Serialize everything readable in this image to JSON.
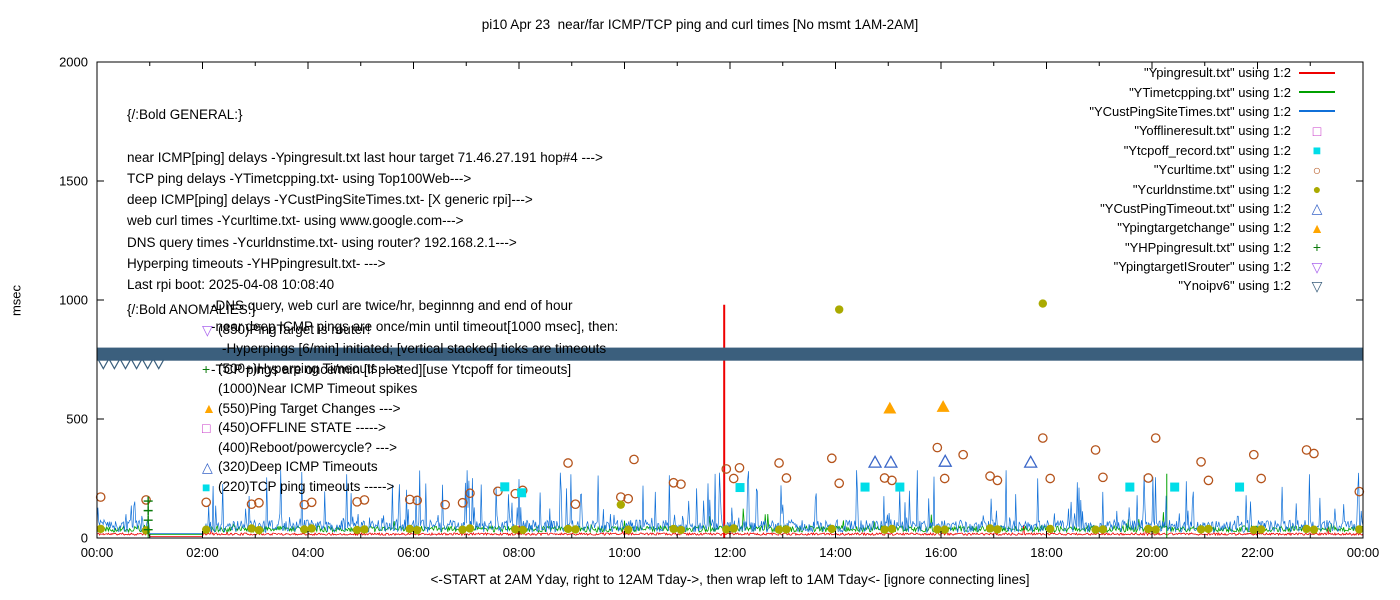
{
  "chart_data": {
    "type": "line",
    "title": "pi10 Apr 23  near/far ICMP/TCP ping and curl times [No msmt 1AM-2AM]",
    "xlabel": "<-START at 2AM Yday, right to 12AM Tday->, then wrap left to 1AM Tday<- [ignore connecting lines]",
    "ylabel": "msec",
    "xlim": [
      0,
      24
    ],
    "ylim": [
      0,
      2000
    ],
    "yticks": [
      0,
      500,
      1000,
      1500,
      2000
    ],
    "xticks": [
      {
        "h": 0,
        "label": "00:00"
      },
      {
        "h": 2,
        "label": "02:00"
      },
      {
        "h": 4,
        "label": "04:00"
      },
      {
        "h": 6,
        "label": "06:00"
      },
      {
        "h": 8,
        "label": "08:00"
      },
      {
        "h": 10,
        "label": "10:00"
      },
      {
        "h": 12,
        "label": "12:00"
      },
      {
        "h": 14,
        "label": "14:00"
      },
      {
        "h": 16,
        "label": "16:00"
      },
      {
        "h": 18,
        "label": "18:00"
      },
      {
        "h": 20,
        "label": "20:00"
      },
      {
        "h": 22,
        "label": "22:00"
      },
      {
        "h": 24,
        "label": "00:00"
      }
    ],
    "legend": [
      {
        "label": "\"Ypingresult.txt\" using 1:2",
        "swatch": "line",
        "color": "#ee0000"
      },
      {
        "label": "\"YTimetcpping.txt\" using 1:2",
        "swatch": "line",
        "color": "#00a000"
      },
      {
        "label": "\"YCustPingSiteTimes.txt\" using 1:2",
        "swatch": "line",
        "color": "#1070d8"
      },
      {
        "label": "\"Yofflineresult.txt\" using 1:2",
        "swatch": "open-square",
        "color": "#c838c8"
      },
      {
        "label": "\"Ytcpoff_record.txt\" using 1:2",
        "swatch": "filled-square",
        "color": "#00dde8"
      },
      {
        "label": "\"Ycurltime.txt\" using 1:2",
        "swatch": "open-circle",
        "color": "#b5541c"
      },
      {
        "label": "\"Ycurldnstime.txt\" using 1:2",
        "swatch": "filled-circle",
        "color": "#aaaa00"
      },
      {
        "label": "\"YCustPingTimeout.txt\" using 1:2",
        "swatch": "open-triangle-up",
        "color": "#3a66c8"
      },
      {
        "label": "\"Ypingtargetchange\" using 1:2",
        "swatch": "filled-triangle-up",
        "color": "#ffa500"
      },
      {
        "label": "\"YHPpingresult.txt\" using 1:2",
        "swatch": "plus",
        "color": "#0a7a0a"
      },
      {
        "label": "\"YpingtargetISrouter\" using 1:2",
        "swatch": "open-triangle-down",
        "color": "#aa66ee"
      },
      {
        "label": "\"Ynoipv6\" using 1:2",
        "swatch": "open-triangle-down",
        "color": "#3b5f7d"
      }
    ],
    "line_series": [
      {
        "name": "Ypingresult",
        "color": "#ee0000",
        "width": 0.8,
        "seed": 11,
        "baseline": 15,
        "noise": 5,
        "spike_prob": 0.003,
        "spike_min": 10,
        "spike_amp": 40,
        "cap": 90,
        "gap": [
          1,
          2
        ],
        "vspikes": [
          {
            "x": 11.89,
            "y": 980,
            "w": 2
          }
        ]
      },
      {
        "name": "YTimetcpping",
        "color": "#00a000",
        "width": 0.8,
        "seed": 22,
        "baseline": 34,
        "noise": 13,
        "spike_prob": 0.02,
        "spike_min": 10,
        "spike_amp": 70,
        "cap": 160,
        "gap": [
          1,
          2
        ],
        "vspikes": [
          {
            "x": 0.97,
            "y": 160,
            "w": 1
          },
          {
            "x": 20.28,
            "y": 270,
            "w": 1
          }
        ]
      },
      {
        "name": "YCustPingSiteTimes",
        "color": "#1070d8",
        "width": 0.7,
        "seed": 33,
        "baseline": 42,
        "noise": 26,
        "spike_prob": 0.12,
        "spike_min": 30,
        "spike_amp": 210,
        "cap": 285,
        "gap": [
          1,
          2
        ],
        "vspikes": []
      }
    ],
    "band": {
      "name": "Ynoipv6",
      "color": "#3b5f7d",
      "x_start": 0,
      "x_end": 24,
      "y_low": 745,
      "y_high": 800,
      "edge_triangle_hours": [
        0.12,
        0.33,
        0.54,
        0.75,
        0.96,
        1.17
      ]
    },
    "scatter_series": [
      {
        "name": "Ycurltime",
        "marker": "open-circle",
        "color": "#b5541c",
        "size": 4.2,
        "points": [
          [
            0.07,
            172
          ],
          [
            0.93,
            160
          ],
          [
            2.07,
            150
          ],
          [
            2.93,
            142
          ],
          [
            3.07,
            148
          ],
          [
            3.93,
            140
          ],
          [
            4.07,
            150
          ],
          [
            4.93,
            152
          ],
          [
            5.07,
            160
          ],
          [
            5.93,
            162
          ],
          [
            6.07,
            158
          ],
          [
            6.6,
            140
          ],
          [
            6.93,
            148
          ],
          [
            7.07,
            188
          ],
          [
            7.6,
            196
          ],
          [
            7.93,
            186
          ],
          [
            8.07,
            200
          ],
          [
            8.93,
            315
          ],
          [
            9.07,
            142
          ],
          [
            9.93,
            172
          ],
          [
            10.07,
            165
          ],
          [
            10.18,
            330
          ],
          [
            10.93,
            232
          ],
          [
            11.07,
            226
          ],
          [
            11.93,
            290
          ],
          [
            12.07,
            250
          ],
          [
            12.18,
            295
          ],
          [
            12.93,
            315
          ],
          [
            13.07,
            252
          ],
          [
            13.93,
            335
          ],
          [
            14.07,
            230
          ],
          [
            14.93,
            252
          ],
          [
            15.07,
            242
          ],
          [
            15.93,
            380
          ],
          [
            16.07,
            250
          ],
          [
            16.42,
            350
          ],
          [
            16.93,
            260
          ],
          [
            17.07,
            242
          ],
          [
            17.93,
            420
          ],
          [
            18.07,
            250
          ],
          [
            18.93,
            370
          ],
          [
            19.07,
            255
          ],
          [
            19.93,
            252
          ],
          [
            20.07,
            420
          ],
          [
            20.93,
            320
          ],
          [
            21.07,
            242
          ],
          [
            21.93,
            350
          ],
          [
            22.07,
            250
          ],
          [
            22.93,
            370
          ],
          [
            23.07,
            355
          ],
          [
            23.93,
            195
          ]
        ]
      },
      {
        "name": "Ycurldnstime",
        "marker": "filled-circle",
        "color": "#aaaa00",
        "size": 4.2,
        "points": [
          [
            0.07,
            38
          ],
          [
            0.93,
            32
          ],
          [
            2.07,
            35
          ],
          [
            2.93,
            40
          ],
          [
            3.07,
            33
          ],
          [
            3.93,
            36
          ],
          [
            4.07,
            40
          ],
          [
            4.93,
            34
          ],
          [
            5.07,
            36
          ],
          [
            5.93,
            38
          ],
          [
            6.07,
            33
          ],
          [
            6.93,
            35
          ],
          [
            7.07,
            40
          ],
          [
            7.93,
            36
          ],
          [
            8.07,
            34
          ],
          [
            8.93,
            38
          ],
          [
            9.07,
            36
          ],
          [
            9.93,
            140
          ],
          [
            10.07,
            35
          ],
          [
            10.93,
            38
          ],
          [
            11.07,
            34
          ],
          [
            11.93,
            36
          ],
          [
            12.07,
            40
          ],
          [
            12.93,
            35
          ],
          [
            13.07,
            36
          ],
          [
            13.93,
            38
          ],
          [
            14.07,
            960
          ],
          [
            14.93,
            35
          ],
          [
            15.07,
            38
          ],
          [
            15.93,
            36
          ],
          [
            16.07,
            35
          ],
          [
            16.93,
            40
          ],
          [
            17.07,
            36
          ],
          [
            17.93,
            985
          ],
          [
            18.07,
            38
          ],
          [
            18.93,
            35
          ],
          [
            19.07,
            36
          ],
          [
            19.93,
            38
          ],
          [
            20.07,
            35
          ],
          [
            20.93,
            36
          ],
          [
            21.07,
            38
          ],
          [
            21.93,
            34
          ],
          [
            22.07,
            36
          ],
          [
            22.93,
            38
          ],
          [
            23.07,
            35
          ],
          [
            23.93,
            36
          ]
        ]
      },
      {
        "name": "Ytcpoff_record",
        "marker": "filled-square",
        "color": "#00dde8",
        "size": 4.5,
        "points": [
          [
            7.73,
            215
          ],
          [
            8.05,
            190
          ],
          [
            12.19,
            212
          ],
          [
            14.56,
            214
          ],
          [
            15.22,
            214
          ],
          [
            19.58,
            214
          ],
          [
            20.43,
            214
          ],
          [
            21.66,
            214
          ]
        ]
      },
      {
        "name": "YCustPingTimeout",
        "marker": "open-triangle-up",
        "color": "#3a66c8",
        "size": 6,
        "points": [
          [
            14.75,
            318
          ],
          [
            15.05,
            318
          ],
          [
            16.08,
            322
          ],
          [
            17.7,
            318
          ]
        ]
      },
      {
        "name": "Ypingtargetchange",
        "marker": "filled-triangle-up",
        "color": "#ffa500",
        "size": 6.5,
        "points": [
          [
            15.03,
            545
          ],
          [
            16.04,
            552
          ]
        ]
      },
      {
        "name": "YHPpingresult",
        "marker": "plus",
        "color": "#0a7a0a",
        "size": 4.5,
        "points": [
          [
            0.97,
            35
          ],
          [
            0.97,
            75
          ],
          [
            0.97,
            115
          ],
          [
            0.97,
            155
          ]
        ]
      }
    ],
    "annotations": {
      "general": {
        "heading": "{/:Bold GENERAL:}",
        "lines": [
          {
            "t": "near ICMP[ping] delays -Ypingresult.txt last hour target 71.46.27.191 hop#4 --->",
            "i": 0
          },
          {
            "t": "TCP ping delays -YTimetcpping.txt- using Top100Web--->",
            "i": 0
          },
          {
            "t": "deep ICMP[ping] delays -YCustPingSiteTimes.txt- [X generic rpi]--->",
            "i": 0
          },
          {
            "t": "web curl times -Ycurltime.txt- using www.google.com--->",
            "i": 0
          },
          {
            "t": "DNS query times -Ycurldnstime.txt- using router? 192.168.2.1--->",
            "i": 0
          },
          {
            "t": "Hyperping timeouts -YHPpingresult.txt- --->",
            "i": 0
          },
          {
            "t": "Last rpi boot: 2025-04-08 10:08:40",
            "i": 0
          },
          {
            "t": "-DNS query, web curl are twice/hr, beginnng and end of hour",
            "i": 84
          },
          {
            "t": "-near,deep ICMP pings are once/min until timeout[1000 msec], then:",
            "i": 84
          },
          {
            "t": "-Hyperpings [6/min] initiated; [vertical stacked] ticks are timeouts",
            "i": 95
          },
          {
            "t": "-TCP pings are once/min [if plotted][use Ytcpoff for timeouts]",
            "i": 84
          }
        ]
      },
      "anomalies": {
        "heading": "{/:Bold ANOMALIES:}",
        "rows": [
          {
            "glyph": "open-triangle-down",
            "color": "#aa66ee",
            "text": "(850)PingTarget is router!"
          },
          {
            "glyph": "",
            "color": "",
            "text": ""
          },
          {
            "glyph": "plus",
            "color": "#0a7a0a",
            "text": "(500+)Hyperping Timeouts --->"
          },
          {
            "glyph": "",
            "color": "",
            "text": "(1000)Near ICMP Timeout spikes"
          },
          {
            "glyph": "filled-triangle-up",
            "color": "#ffa500",
            "text": "(550)Ping Target Changes --->"
          },
          {
            "glyph": "open-square",
            "color": "#c838c8",
            "text": "(450)OFFLINE STATE ----->"
          },
          {
            "glyph": "",
            "color": "",
            "text": "(400)Reboot/powercycle? --->"
          },
          {
            "glyph": "open-triangle-up",
            "color": "#3a66c8",
            "text": "(320)Deep ICMP Timeouts"
          },
          {
            "glyph": "filled-square",
            "color": "#00dde8",
            "text": "(220)TCP ping timeouts ----->"
          }
        ]
      }
    }
  }
}
